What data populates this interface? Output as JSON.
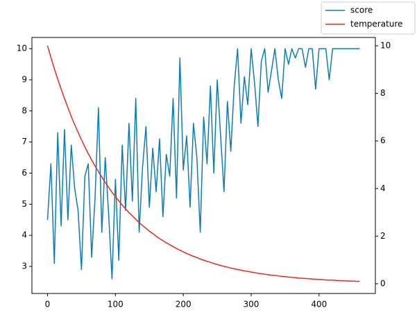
{
  "chart_data": {
    "type": "line",
    "x": [
      0,
      5,
      10,
      15,
      20,
      25,
      30,
      35,
      40,
      45,
      50,
      55,
      60,
      65,
      70,
      75,
      80,
      85,
      90,
      95,
      100,
      105,
      110,
      115,
      120,
      125,
      130,
      135,
      140,
      145,
      150,
      155,
      160,
      165,
      170,
      175,
      180,
      185,
      190,
      195,
      200,
      205,
      210,
      215,
      220,
      225,
      230,
      235,
      240,
      245,
      250,
      255,
      260,
      265,
      270,
      275,
      280,
      285,
      290,
      295,
      300,
      305,
      310,
      315,
      320,
      325,
      330,
      335,
      340,
      345,
      350,
      355,
      360,
      365,
      370,
      375,
      380,
      385,
      390,
      395,
      400,
      405,
      410,
      415,
      420,
      425,
      430,
      435,
      440,
      445,
      450,
      455,
      460
    ],
    "series": [
      {
        "name": "score",
        "color": "#0a7db8",
        "axis": "y",
        "values": [
          4.5,
          6.3,
          3.1,
          7.3,
          4.3,
          7.4,
          4.5,
          6.9,
          5.5,
          4.8,
          2.9,
          5.9,
          6.3,
          3.3,
          5.2,
          8.1,
          4.1,
          6.5,
          4.7,
          2.6,
          5.8,
          3.2,
          6.9,
          4.8,
          7.6,
          5.1,
          8.4,
          4.1,
          6.2,
          7.5,
          4.9,
          6.8,
          5.4,
          7.1,
          4.6,
          6.6,
          5.9,
          8.4,
          5.2,
          9.7,
          6.1,
          7.2,
          4.9,
          7.6,
          6.5,
          4.1,
          7.8,
          6.3,
          8.8,
          6.0,
          9.0,
          7.2,
          5.4,
          8.3,
          6.7,
          8.8,
          10,
          7.6,
          9.1,
          8.2,
          10,
          8.9,
          7.5,
          9.6,
          10,
          8.6,
          9.3,
          10,
          9.0,
          8.4,
          10,
          9.5,
          10,
          9.7,
          10,
          10,
          9.4,
          10,
          10,
          8.7,
          10,
          10,
          10,
          9.0,
          10,
          10,
          10,
          10,
          10,
          10,
          10,
          10,
          10
        ]
      },
      {
        "name": "temperature",
        "color": "#e8291c",
        "axis": "y2",
        "values": [
          10,
          9.51,
          9.04,
          8.6,
          8.18,
          7.78,
          7.4,
          7.03,
          6.69,
          6.36,
          6.05,
          5.75,
          5.47,
          5.2,
          4.95,
          4.71,
          4.48,
          4.26,
          4.05,
          3.85,
          3.66,
          3.48,
          3.31,
          3.15,
          2.99,
          2.85,
          2.71,
          2.57,
          2.45,
          2.33,
          2.21,
          2.11,
          2.0,
          1.9,
          1.81,
          1.72,
          1.64,
          1.56,
          1.48,
          1.41,
          1.34,
          1.27,
          1.21,
          1.15,
          1.1,
          1.04,
          0.99,
          0.94,
          0.9,
          0.85,
          0.81,
          0.77,
          0.73,
          0.7,
          0.66,
          0.63,
          0.6,
          0.57,
          0.54,
          0.52,
          0.49,
          0.47,
          0.44,
          0.42,
          0.4,
          0.38,
          0.36,
          0.35,
          0.33,
          0.31,
          0.3,
          0.28,
          0.27,
          0.26,
          0.24,
          0.23,
          0.22,
          0.21,
          0.2,
          0.19,
          0.18,
          0.17,
          0.16,
          0.15,
          0.15,
          0.14,
          0.13,
          0.13,
          0.12,
          0.11,
          0.11,
          0.1,
          0.1
        ]
      }
    ],
    "xlim": [
      -23,
      483
    ],
    "xticks": [
      0,
      100,
      200,
      300,
      400
    ],
    "ylim": [
      2.13,
      10.36
    ],
    "yticks": [
      3,
      4,
      5,
      6,
      7,
      8,
      9,
      10
    ],
    "y2lim": [
      -0.41,
      10.35
    ],
    "y2ticks": [
      0,
      2,
      4,
      6,
      8,
      10
    ],
    "legend": "upper right"
  }
}
